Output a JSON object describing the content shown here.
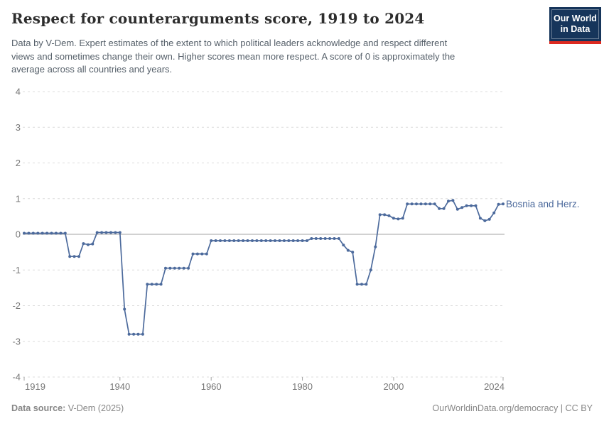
{
  "header": {
    "title": "Respect for counterarguments score, 1919 to 2024",
    "subtitle_lines": [
      "Data by V-Dem. Expert estimates of the extent to which political leaders acknowledge and respect different",
      "views and sometimes change their own. Higher scores mean more respect. A score of 0 is approximately the",
      "average across all countries and years."
    ],
    "logo": {
      "line1": "Our World",
      "line2": "in Data"
    }
  },
  "footer": {
    "source_label": "Data source:",
    "source_value": " V-Dem (2025)",
    "rights": "OurWorldinData.org/democracy | CC BY"
  },
  "colors": {
    "line": "#4c6a9c",
    "grid": "#dcdcdc",
    "zero_line": "#a3a3a3",
    "axis_text": "#787878",
    "title_text": "#2d2d2d",
    "subtitle_text": "#56606a",
    "footer_text": "#878787",
    "logo_bg": "#16355b",
    "logo_stripe": "#dd2a20"
  },
  "chart_data": {
    "type": "line",
    "title": "Respect for counterarguments score, 1919 to 2024",
    "series_label": "Bosnia and Herz.",
    "x_start": 1919,
    "x_end": 2024,
    "xlim": [
      1919,
      2024
    ],
    "ylim": [
      -4,
      4
    ],
    "yticks": [
      4,
      3,
      2,
      1,
      0,
      -1,
      -2,
      -3,
      -4
    ],
    "xticks": [
      1919,
      1940,
      1960,
      1980,
      2000,
      2024
    ],
    "grid": "horizontal dashed, solid line at 0",
    "legend": "inline label at right end of line",
    "marker": "point on every year",
    "values": [
      0.03,
      0.03,
      0.03,
      0.03,
      0.03,
      0.03,
      0.03,
      0.03,
      0.03,
      0.03,
      -0.62,
      -0.62,
      -0.62,
      -0.26,
      -0.29,
      -0.27,
      0.05,
      0.05,
      0.05,
      0.05,
      0.05,
      0.05,
      -2.1,
      -2.8,
      -2.8,
      -2.8,
      -2.8,
      -1.4,
      -1.4,
      -1.4,
      -1.4,
      -0.95,
      -0.95,
      -0.95,
      -0.95,
      -0.95,
      -0.95,
      -0.55,
      -0.55,
      -0.55,
      -0.55,
      -0.18,
      -0.18,
      -0.18,
      -0.18,
      -0.18,
      -0.18,
      -0.18,
      -0.18,
      -0.18,
      -0.18,
      -0.18,
      -0.18,
      -0.18,
      -0.18,
      -0.18,
      -0.18,
      -0.18,
      -0.18,
      -0.18,
      -0.18,
      -0.18,
      -0.18,
      -0.12,
      -0.12,
      -0.12,
      -0.12,
      -0.12,
      -0.12,
      -0.12,
      -0.3,
      -0.45,
      -0.5,
      -1.4,
      -1.4,
      -1.4,
      -1.0,
      -0.35,
      0.55,
      0.55,
      0.52,
      0.45,
      0.43,
      0.45,
      0.85,
      0.85,
      0.85,
      0.85,
      0.85,
      0.85,
      0.85,
      0.72,
      0.72,
      0.93,
      0.95,
      0.7,
      0.75,
      0.8,
      0.8,
      0.8,
      0.45,
      0.38,
      0.42,
      0.6,
      0.84,
      0.85
    ]
  }
}
